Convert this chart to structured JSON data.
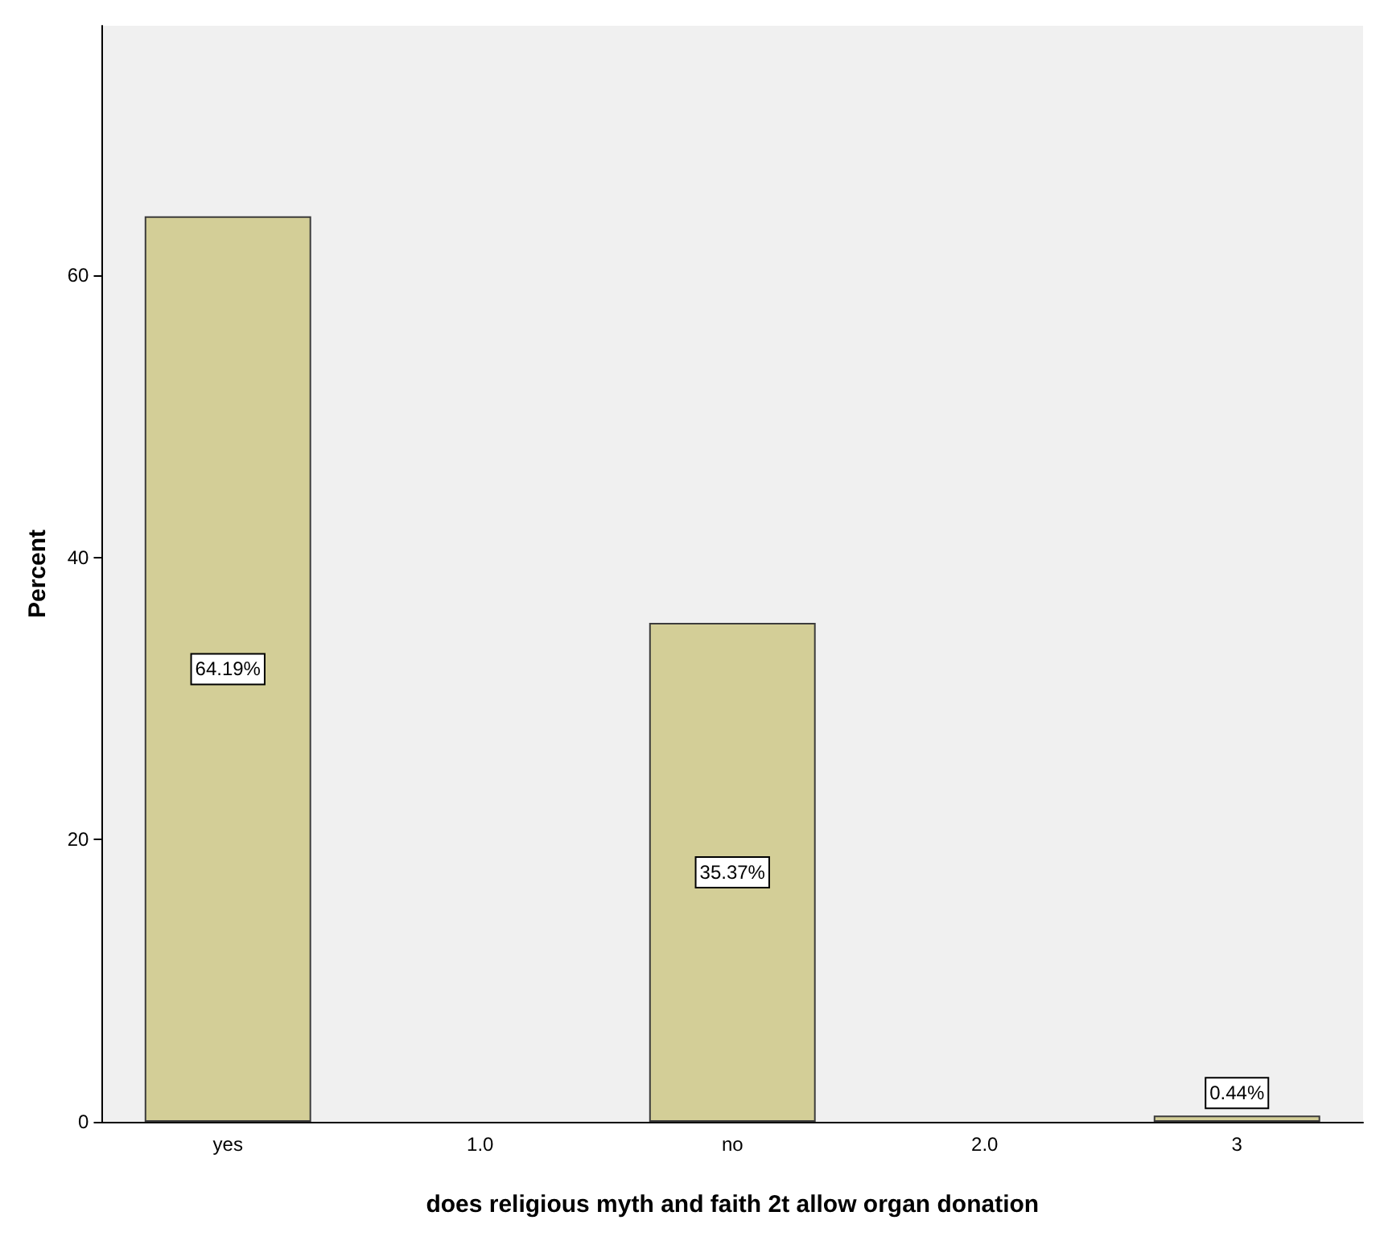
{
  "chart_data": {
    "type": "bar",
    "xlabel": "does religious myth and faith 2t allow organ donation",
    "ylabel": "Percent",
    "categories": [
      "yes",
      "1.0",
      "no",
      "2.0",
      "3"
    ],
    "values": [
      64.19,
      null,
      35.37,
      null,
      0.44
    ],
    "value_labels": [
      "64.19%",
      null,
      "35.37%",
      null,
      "0.44%"
    ],
    "color": "#d3ce97",
    "ylim": [
      0,
      77.7
    ],
    "yticks": [
      0,
      20,
      40,
      60
    ],
    "grid": false
  }
}
